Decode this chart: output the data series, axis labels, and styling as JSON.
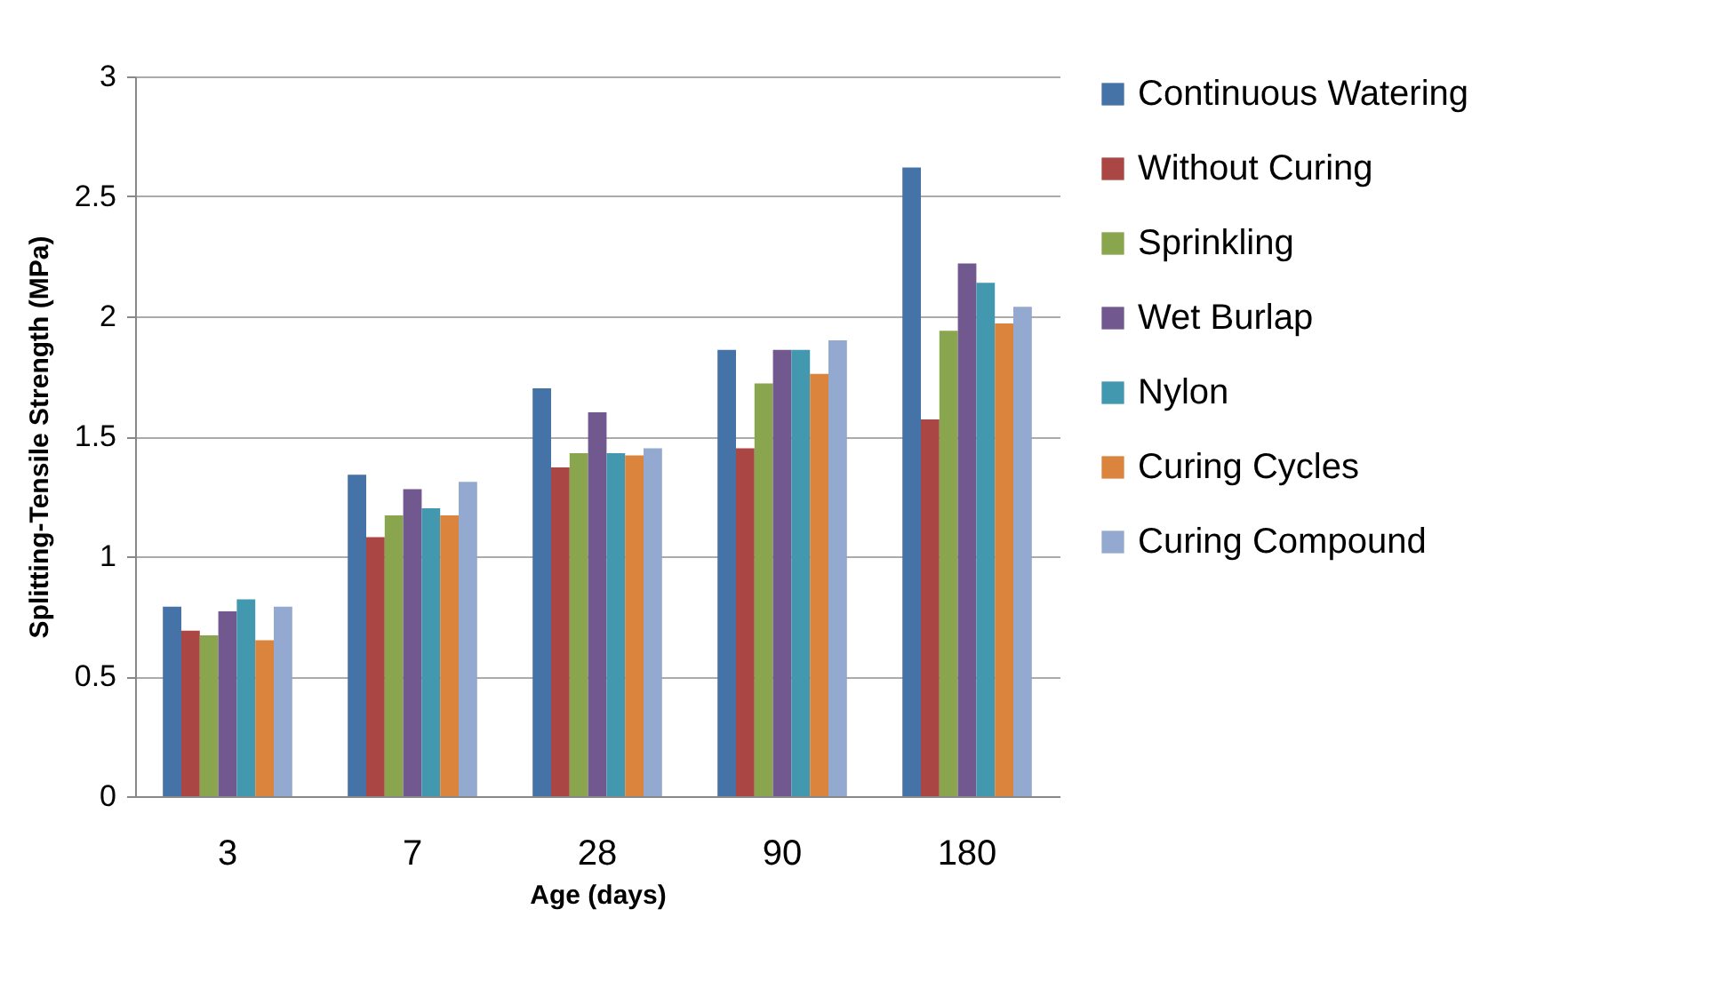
{
  "chart_data": {
    "type": "bar",
    "xlabel": "Age (days)",
    "ylabel": "Splitting-Tensile Strength (MPa)",
    "categories": [
      "3",
      "7",
      "28",
      "90",
      "180"
    ],
    "series": [
      {
        "name": "Continuous Watering",
        "color": "#4572a7",
        "values": [
          0.79,
          1.34,
          1.7,
          1.86,
          2.62
        ]
      },
      {
        "name": "Without Curing",
        "color": "#aa4643",
        "values": [
          0.69,
          1.08,
          1.37,
          1.45,
          1.57
        ]
      },
      {
        "name": "Sprinkling",
        "color": "#89a54e",
        "values": [
          0.67,
          1.17,
          1.43,
          1.72,
          1.94
        ]
      },
      {
        "name": "Wet Burlap",
        "color": "#71588f",
        "values": [
          0.77,
          1.28,
          1.6,
          1.86,
          2.22
        ]
      },
      {
        "name": "Nylon",
        "color": "#4198af",
        "values": [
          0.82,
          1.2,
          1.43,
          1.86,
          2.14
        ]
      },
      {
        "name": "Curing Cycles",
        "color": "#db843d",
        "values": [
          0.65,
          1.17,
          1.42,
          1.76,
          1.97
        ]
      },
      {
        "name": "Curing Compound",
        "color": "#93a9cf",
        "values": [
          0.79,
          1.31,
          1.45,
          1.9,
          2.04
        ]
      }
    ],
    "ylim": [
      0,
      3
    ],
    "yticks": [
      0,
      0.5,
      1,
      1.5,
      2,
      2.5,
      3
    ],
    "grid": "y",
    "legend": "right"
  }
}
